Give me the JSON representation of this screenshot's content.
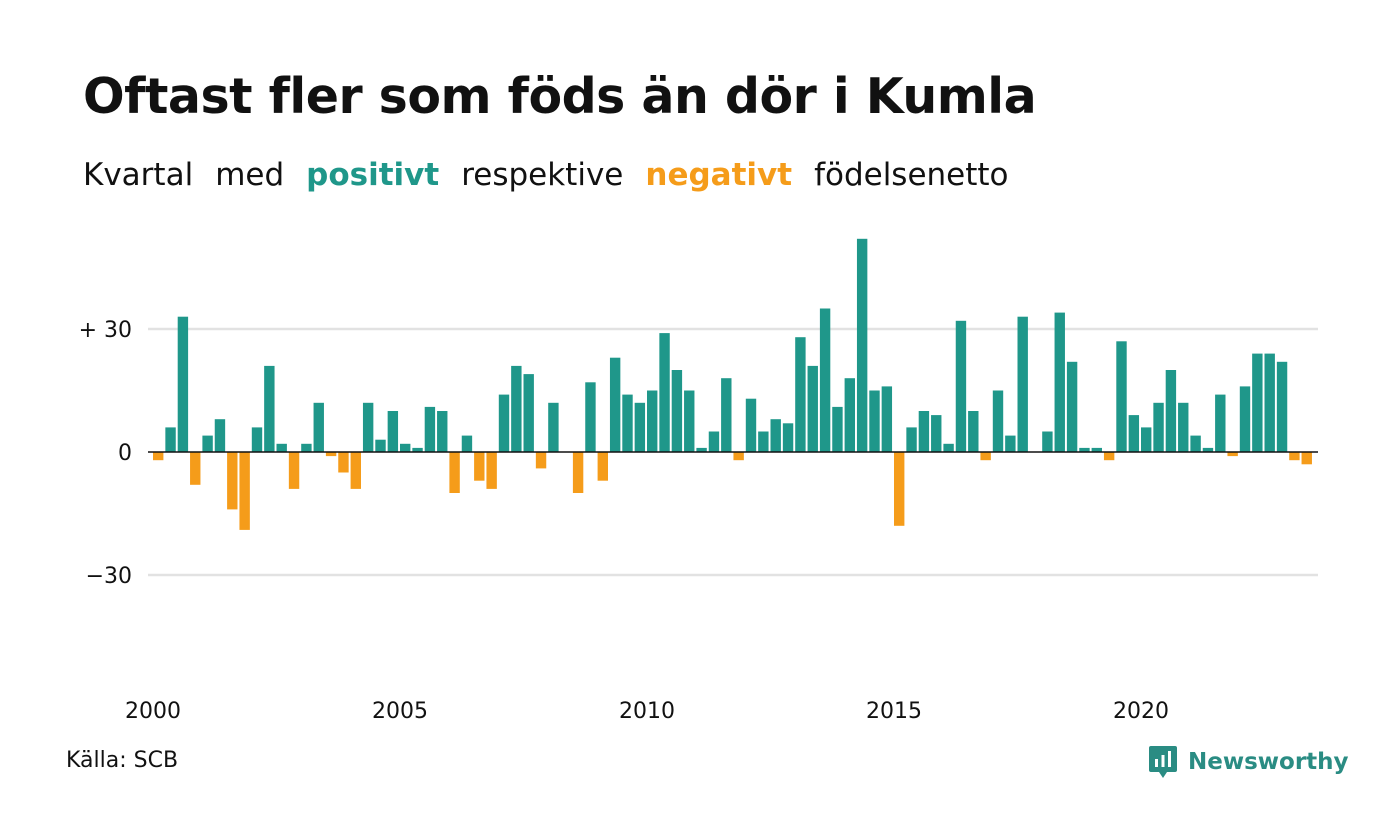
{
  "title": "Oftast fler som föds än dör i Kumla",
  "subtitle": {
    "part1": "Kvartal",
    "part2": "med",
    "positive_word": "positivt",
    "part3": "respektive",
    "negative_word": "negativt",
    "part4": "födelsenetto"
  },
  "source": "Källa: SCB",
  "brand": {
    "name": "Newsworthy",
    "icon": "newsworthy-logo-icon"
  },
  "colors": {
    "positive": "#1f978a",
    "negative": "#f59c1a",
    "grid": "#e2e2e2",
    "baseline": "#111111",
    "text": "#111111"
  },
  "chart_data": {
    "type": "bar",
    "x_start_year": 2000,
    "x_start_quarter": 1,
    "values": [
      -2,
      6,
      33,
      -8,
      4,
      8,
      -14,
      -19,
      6,
      21,
      2,
      -9,
      2,
      12,
      -1,
      -5,
      -9,
      12,
      3,
      10,
      2,
      1,
      11,
      10,
      -10,
      4,
      -7,
      -9,
      14,
      21,
      19,
      -4,
      12,
      0,
      -10,
      17,
      -7,
      23,
      14,
      12,
      15,
      29,
      20,
      15,
      1,
      5,
      18,
      -2,
      13,
      5,
      8,
      7,
      28,
      21,
      35,
      11,
      18,
      52,
      15,
      16,
      -18,
      6,
      10,
      9,
      2,
      32,
      10,
      -2,
      15,
      4,
      33,
      0,
      5,
      34,
      22,
      1,
      1,
      -2,
      27,
      9,
      6,
      12,
      20,
      12,
      4,
      1,
      14,
      -1,
      16,
      24,
      24,
      22,
      -2,
      -3
    ],
    "y_ticks": [
      {
        "value": 30,
        "label": "+ 30"
      },
      {
        "value": 0,
        "label": "0"
      },
      {
        "value": -30,
        "label": "−30"
      }
    ],
    "x_ticks": [
      {
        "year": 2000,
        "label": "2000"
      },
      {
        "year": 2005,
        "label": "2005"
      },
      {
        "year": 2010,
        "label": "2010"
      },
      {
        "year": 2015,
        "label": "2015"
      },
      {
        "year": 2020,
        "label": "2020"
      }
    ],
    "ylim": [
      -55,
      55
    ],
    "grid": true,
    "legend": "in subtitle"
  }
}
